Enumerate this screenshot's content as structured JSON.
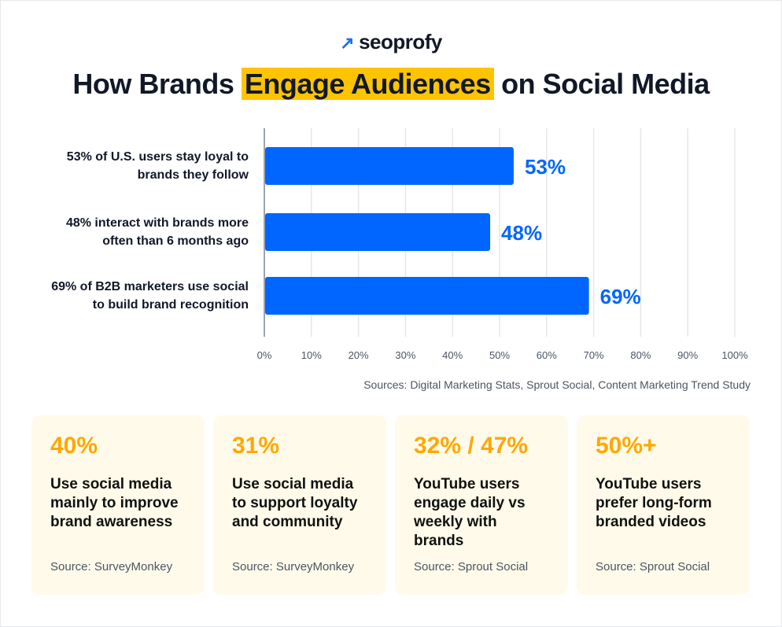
{
  "brand": {
    "name": "seoprofy",
    "icon": "arrow-up-right-icon",
    "color": "#1a6dff"
  },
  "title": {
    "before": "How Brands ",
    "highlight": "Engage Audiences",
    "after": " on Social Media",
    "highlight_color": "#ffc400"
  },
  "chart_data": {
    "type": "bar",
    "orientation": "horizontal",
    "categories": [
      [
        "53% of U.S. users stay loyal to",
        "brands they follow"
      ],
      [
        "48% interact with brands more",
        "often than 6 months ago"
      ],
      [
        "69% of B2B marketers use social",
        "to build brand recognition"
      ]
    ],
    "values": [
      53,
      48,
      69
    ],
    "data_labels": [
      "53%",
      "48%",
      "69%"
    ],
    "xlim": [
      0,
      100
    ],
    "xticks": [
      "0%",
      "10%",
      "20%",
      "30%",
      "40%",
      "50%",
      "60%",
      "70%",
      "80%",
      "90%",
      "100%"
    ],
    "grid": true,
    "bar_color": "#0066ff"
  },
  "source": "Sources: Digital Marketing Stats, Sprout Social, Content Marketing Trend Study",
  "cards": [
    {
      "num": "40%",
      "desc": "Use social media mainly to improve brand awareness",
      "src": "Source: SurveyMonkey"
    },
    {
      "num": "31%",
      "desc": "Use social media to support loyalty and community",
      "src": "Source: SurveyMonkey"
    },
    {
      "num": "32% / 47%",
      "desc": "YouTube users engage daily vs weekly with brands",
      "src": "Source: Sprout Social"
    },
    {
      "num": "50%+",
      "desc": "YouTube users prefer long-form branded videos",
      "src": "Source: Sprout Social"
    }
  ]
}
